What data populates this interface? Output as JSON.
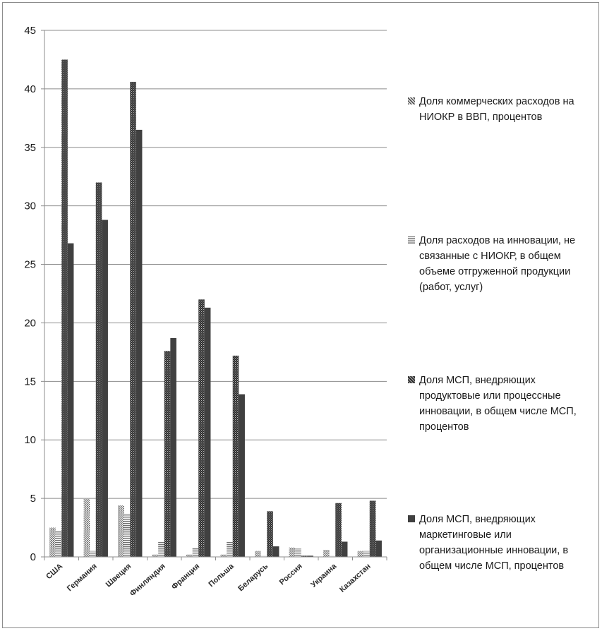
{
  "chart_data": {
    "type": "bar",
    "categories": [
      "США",
      "Германия",
      "Швеция",
      "Финляндия",
      "Франция",
      "Польша",
      "Беларусь",
      "Россия",
      "Украина",
      "Казахстан"
    ],
    "series": [
      {
        "name": "Доля коммерческих расходов на НИОКР в ВВП, процентов",
        "values": [
          2.5,
          5.0,
          4.4,
          0.2,
          0.2,
          0.2,
          0.5,
          0.8,
          0.6,
          0.5
        ],
        "pattern": "dots",
        "color": "#777777"
      },
      {
        "name": "Доля расходов на инновации, не связанные с НИОКР, в общем объеме отгруженной продукции (работ, услуг)",
        "values": [
          2.2,
          0.5,
          3.7,
          1.3,
          0.8,
          1.3,
          0.1,
          0.7,
          0.1,
          0.5
        ],
        "pattern": "hlines",
        "color": "#8a8a8a"
      },
      {
        "name": "Доля МСП, внедряющих продуктовые или процессные инновации, в общем числе МСП, процентов",
        "values": [
          42.5,
          32.0,
          40.6,
          17.6,
          22.0,
          17.2,
          3.9,
          0.1,
          4.6,
          4.8
        ],
        "pattern": "crosshatch",
        "color": "#3c3c3c"
      },
      {
        "name": "Доля МСП, внедряющих маркетинговые или организационные инновации, в общем числе МСП, процентов",
        "values": [
          26.8,
          28.8,
          36.5,
          18.7,
          21.3,
          13.9,
          0.9,
          0.1,
          1.3,
          1.4
        ],
        "pattern": "solid",
        "color": "#404040"
      }
    ],
    "ylim": [
      0,
      45
    ],
    "yticks": [
      0,
      5,
      10,
      15,
      20,
      25,
      30,
      35,
      40,
      45
    ],
    "grid": true,
    "legend_position": "right",
    "title": "",
    "xlabel": "",
    "ylabel": ""
  }
}
